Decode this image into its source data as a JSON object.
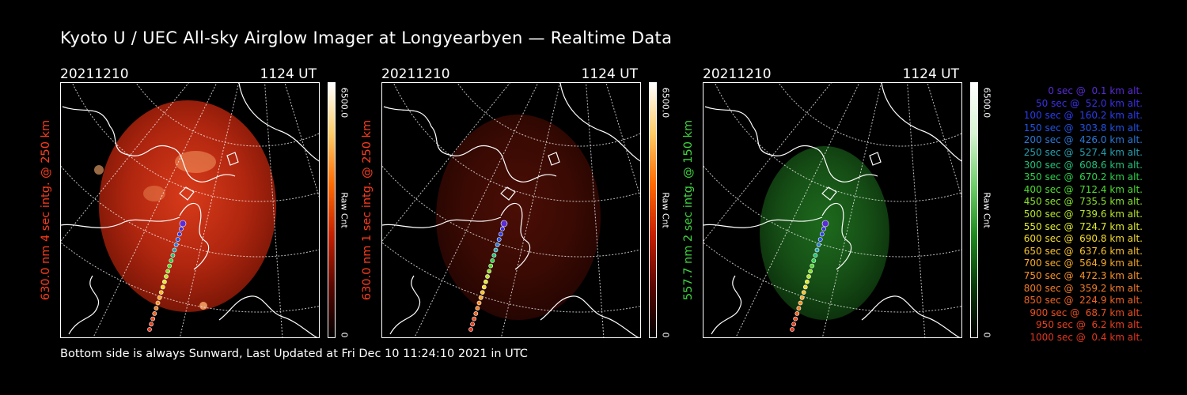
{
  "title": "Kyoto U / UEC All-sky Airglow Imager at Longyearbyen — Realtime Data",
  "footer": "Bottom side is always Sunward, Last Updated at Fri Dec 10 11:24:10 2021 in UTC",
  "panels": [
    {
      "date": "20211210",
      "time": "1124 UT",
      "ylabel": "630.0 nm 4 sec intg. @ 250 km",
      "label_color": "#ff3c1c",
      "cbar_max": "6500.0",
      "cbar_min": "0",
      "cbar_unit": "Raw Cnt",
      "cbar_colors": [
        "#ffffff",
        "#ffcc66",
        "#ff6a00",
        "#c51f00",
        "#5a0700",
        "#000000"
      ],
      "glow_colors": [
        "#d83b1a",
        "#b0260f",
        "#7d1707"
      ],
      "glow_opacity": 1.0
    },
    {
      "date": "20211210",
      "time": "1124 UT",
      "ylabel": "630.0 nm 1 sec intg. @ 250 km",
      "label_color": "#ff3c1c",
      "cbar_max": "6500.0",
      "cbar_min": "0",
      "cbar_unit": "Raw Cnt",
      "cbar_colors": [
        "#ffffff",
        "#ffcc66",
        "#ff6a00",
        "#c51f00",
        "#5a0700",
        "#000000"
      ],
      "glow_colors": [
        "#4a0e06",
        "#3a0a03",
        "#260502"
      ],
      "glow_opacity": 1.0
    },
    {
      "date": "20211210",
      "time": "1124 UT",
      "ylabel": "557.7 nm 2 sec intg. @ 150 km",
      "label_color": "#3ed63e",
      "cbar_max": "6500.0",
      "cbar_min": "0",
      "cbar_unit": "Raw Cnt",
      "cbar_colors": [
        "#ffffff",
        "#d6f5d0",
        "#6fd06a",
        "#1e8a1e",
        "#0a3a0a",
        "#000000"
      ],
      "glow_colors": [
        "#1d6a1d",
        "#164f16",
        "#0d330d"
      ],
      "glow_opacity": 1.0
    }
  ],
  "trajectory_legend": [
    {
      "t": "0 sec @",
      "alt": "0.1 km alt.",
      "color": "#5a2bd8"
    },
    {
      "t": "50 sec @",
      "alt": "52.0 km alt.",
      "color": "#3a30e8"
    },
    {
      "t": "100 sec @",
      "alt": "160.2 km alt.",
      "color": "#2a3cf0"
    },
    {
      "t": "150 sec @",
      "alt": "303.8 km alt.",
      "color": "#2052e6"
    },
    {
      "t": "200 sec @",
      "alt": "426.0 km alt.",
      "color": "#2a78d8"
    },
    {
      "t": "250 sec @",
      "alt": "527.4 km alt.",
      "color": "#25a0b0"
    },
    {
      "t": "300 sec @",
      "alt": "608.6 km alt.",
      "color": "#22c27a"
    },
    {
      "t": "350 sec @",
      "alt": "670.2 km alt.",
      "color": "#2ad24a"
    },
    {
      "t": "400 sec @",
      "alt": "712.4 km alt.",
      "color": "#4edc2e"
    },
    {
      "t": "450 sec @",
      "alt": "735.5 km alt.",
      "color": "#88e22a"
    },
    {
      "t": "500 sec @",
      "alt": "739.6 km alt.",
      "color": "#b8e82a"
    },
    {
      "t": "550 sec @",
      "alt": "724.7 km alt.",
      "color": "#e0ec2c"
    },
    {
      "t": "600 sec @",
      "alt": "690.8 km alt.",
      "color": "#f4dc2c"
    },
    {
      "t": "650 sec @",
      "alt": "637.6 km alt.",
      "color": "#f8c22a"
    },
    {
      "t": "700 sec @",
      "alt": "564.9 km alt.",
      "color": "#f8aa28"
    },
    {
      "t": "750 sec @",
      "alt": "472.3 km alt.",
      "color": "#f89226"
    },
    {
      "t": "800 sec @",
      "alt": "359.2 km alt.",
      "color": "#f47c24"
    },
    {
      "t": "850 sec @",
      "alt": "224.9 km alt.",
      "color": "#f06422"
    },
    {
      "t": "900 sec @",
      "alt": "68.7 km alt.",
      "color": "#ec5020"
    },
    {
      "t": "950 sec @",
      "alt": "6.2 km alt.",
      "color": "#e8401e"
    },
    {
      "t": "1000 sec @",
      "alt": "0.4 km alt.",
      "color": "#e4361c"
    }
  ],
  "chart_data": {
    "type": "scatter",
    "title": "Kyoto U / UEC All-sky Airglow Imager at Longyearbyen — Realtime Data",
    "series": [
      {
        "name": "",
        "x": [
          0,
          50,
          100,
          150,
          200,
          250,
          300,
          350,
          400,
          450,
          500,
          550,
          600,
          650,
          700,
          750,
          800,
          850,
          900,
          950,
          1000
        ],
        "y": [
          0.1,
          52.0,
          160.2,
          303.8,
          426.0,
          527.4,
          608.6,
          670.2,
          712.4,
          735.5,
          739.6,
          724.7,
          690.8,
          637.6,
          564.9,
          472.3,
          359.2,
          224.9,
          68.7,
          6.2,
          0.4
        ]
      }
    ],
    "xunit": "sec",
    "yunit": "km alt.",
    "colorbar_range": [
      0,
      6500.0
    ]
  }
}
